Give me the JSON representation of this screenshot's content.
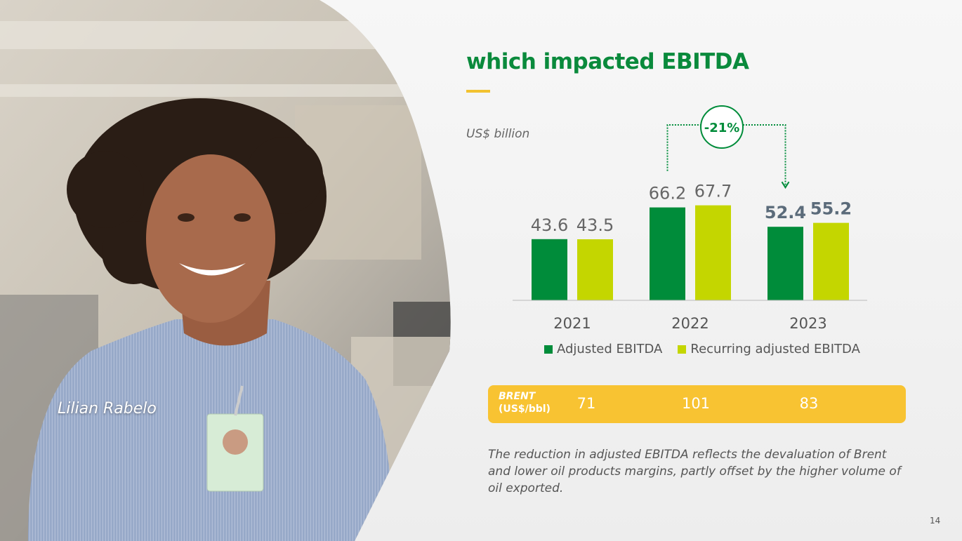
{
  "slide": {
    "title": "which impacted EBITDA",
    "unit": "US$ billion",
    "photo_caption": "Lilian Rabelo",
    "page_number": "14",
    "note": "The reduction in adjusted EBITDA reflects the devaluation of Brent and lower oil products margins, partly offset by the higher volume of oil exported."
  },
  "colors": {
    "dark_green": "#008c3a",
    "lime": "#c4d600",
    "title_green": "#0a8a3c",
    "brent_yellow": "#f8c332"
  },
  "brent": {
    "label_line1": "BRENT",
    "label_line2": "(US$/bbl)",
    "values": [
      "71",
      "101",
      "83"
    ]
  },
  "chart_data": {
    "type": "bar",
    "title": "which impacted EBITDA",
    "ylabel": "US$ billion",
    "xlabel": "",
    "categories": [
      "2021",
      "2022",
      "2023"
    ],
    "series": [
      {
        "name": "Adjusted EBITDA",
        "values": [
          43.6,
          66.2,
          52.4
        ],
        "labels": [
          "43.6",
          "66.2",
          "52.4"
        ],
        "color": "#008c3a"
      },
      {
        "name": "Recurring adjusted EBITDA",
        "values": [
          43.5,
          67.7,
          55.2
        ],
        "labels": [
          "43.5",
          "67.7",
          "55.2"
        ],
        "color": "#c4d600"
      }
    ],
    "ylim": [
      0,
      80
    ],
    "grid": false,
    "legend_position": "bottom",
    "annotation": {
      "text": "-21%",
      "from": "2022 Adjusted EBITDA",
      "to": "2023 Adjusted EBITDA"
    }
  }
}
